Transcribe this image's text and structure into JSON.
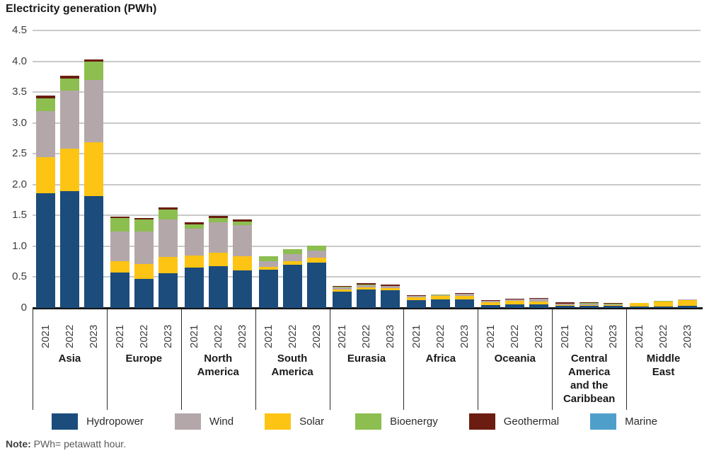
{
  "title": "Electricity generation (PWh)",
  "note": {
    "label": "Note:",
    "text": " PWh= petawatt hour."
  },
  "chart_data": {
    "type": "bar",
    "stacked": true,
    "title": "Electricity generation (PWh)",
    "ylabel": "Electricity generation (PWh)",
    "ylim": [
      0,
      4.5
    ],
    "grid": "horizontal",
    "legend_position": "bottom",
    "yticks": [
      "4.5",
      "4.0",
      "3.5",
      "3.0",
      "2.5",
      "2.0",
      "1.5",
      "1.0",
      "0.5",
      "0"
    ],
    "years": [
      "2021",
      "2022",
      "2023"
    ],
    "legend": [
      "Hydropower",
      "Wind",
      "Solar",
      "Bioenergy",
      "Geothermal",
      "Marine"
    ],
    "stack_order_bottom_to_top": [
      "Hydropower",
      "Solar",
      "Wind",
      "Bioenergy",
      "Geothermal",
      "Marine"
    ],
    "colors": {
      "Hydropower": "#1b4c7c",
      "Wind": "#b4a7aa",
      "Solar": "#fdc414",
      "Bioenergy": "#8cbe50",
      "Geothermal": "#6b1d11",
      "Marine": "#4f9fcb"
    },
    "regions": [
      {
        "name": "Asia",
        "bars": [
          {
            "year": "2021",
            "Hydropower": 1.86,
            "Solar": 0.58,
            "Wind": 0.75,
            "Bioenergy": 0.21,
            "Geothermal": 0.045,
            "Marine": 0
          },
          {
            "year": "2022",
            "Hydropower": 1.9,
            "Solar": 0.68,
            "Wind": 0.95,
            "Bioenergy": 0.19,
            "Geothermal": 0.045,
            "Marine": 0
          },
          {
            "year": "2023",
            "Hydropower": 1.81,
            "Solar": 0.88,
            "Wind": 1.01,
            "Bioenergy": 0.29,
            "Geothermal": 0.045,
            "Marine": 0
          }
        ]
      },
      {
        "name": "Europe",
        "bars": [
          {
            "year": "2021",
            "Hydropower": 0.57,
            "Solar": 0.19,
            "Wind": 0.48,
            "Bioenergy": 0.22,
            "Geothermal": 0.025,
            "Marine": 0.001
          },
          {
            "year": "2022",
            "Hydropower": 0.47,
            "Solar": 0.24,
            "Wind": 0.53,
            "Bioenergy": 0.19,
            "Geothermal": 0.025,
            "Marine": 0.001
          },
          {
            "year": "2023",
            "Hydropower": 0.56,
            "Solar": 0.27,
            "Wind": 0.61,
            "Bioenergy": 0.16,
            "Geothermal": 0.03,
            "Marine": 0.001
          }
        ]
      },
      {
        "name": "North America",
        "bars": [
          {
            "year": "2021",
            "Hydropower": 0.66,
            "Solar": 0.19,
            "Wind": 0.44,
            "Bioenergy": 0.07,
            "Geothermal": 0.03,
            "Marine": 0
          },
          {
            "year": "2022",
            "Hydropower": 0.68,
            "Solar": 0.22,
            "Wind": 0.49,
            "Bioenergy": 0.07,
            "Geothermal": 0.035,
            "Marine": 0
          },
          {
            "year": "2023",
            "Hydropower": 0.61,
            "Solar": 0.23,
            "Wind": 0.5,
            "Bioenergy": 0.06,
            "Geothermal": 0.035,
            "Marine": 0
          }
        ]
      },
      {
        "name": "South America",
        "bars": [
          {
            "year": "2021",
            "Hydropower": 0.62,
            "Solar": 0.05,
            "Wind": 0.09,
            "Bioenergy": 0.08,
            "Geothermal": 0,
            "Marine": 0
          },
          {
            "year": "2022",
            "Hydropower": 0.7,
            "Solar": 0.06,
            "Wind": 0.11,
            "Bioenergy": 0.08,
            "Geothermal": 0,
            "Marine": 0
          },
          {
            "year": "2023",
            "Hydropower": 0.73,
            "Solar": 0.08,
            "Wind": 0.12,
            "Bioenergy": 0.08,
            "Geothermal": 0,
            "Marine": 0
          }
        ]
      },
      {
        "name": "Eurasia",
        "bars": [
          {
            "year": "2021",
            "Hydropower": 0.26,
            "Solar": 0.035,
            "Wind": 0.04,
            "Bioenergy": 0.005,
            "Geothermal": 0.022,
            "Marine": 0
          },
          {
            "year": "2022",
            "Hydropower": 0.3,
            "Solar": 0.03,
            "Wind": 0.04,
            "Bioenergy": 0.005,
            "Geothermal": 0.025,
            "Marine": 0
          },
          {
            "year": "2023",
            "Hydropower": 0.285,
            "Solar": 0.035,
            "Wind": 0.035,
            "Bioenergy": 0.005,
            "Geothermal": 0.022,
            "Marine": 0
          }
        ]
      },
      {
        "name": "Africa",
        "bars": [
          {
            "year": "2021",
            "Hydropower": 0.13,
            "Solar": 0.045,
            "Wind": 0.018,
            "Bioenergy": 0.005,
            "Geothermal": 0.005,
            "Marine": 0
          },
          {
            "year": "2022",
            "Hydropower": 0.135,
            "Solar": 0.055,
            "Wind": 0.02,
            "Bioenergy": 0.005,
            "Geothermal": 0.005,
            "Marine": 0
          },
          {
            "year": "2023",
            "Hydropower": 0.14,
            "Solar": 0.06,
            "Wind": 0.025,
            "Bioenergy": 0.006,
            "Geothermal": 0.005,
            "Marine": 0
          }
        ]
      },
      {
        "name": "Oceania",
        "bars": [
          {
            "year": "2021",
            "Hydropower": 0.048,
            "Solar": 0.04,
            "Wind": 0.025,
            "Bioenergy": 0.007,
            "Geothermal": 0.002,
            "Marine": 0
          },
          {
            "year": "2022",
            "Hydropower": 0.058,
            "Solar": 0.052,
            "Wind": 0.028,
            "Bioenergy": 0.004,
            "Geothermal": 0.008,
            "Marine": 0
          },
          {
            "year": "2023",
            "Hydropower": 0.054,
            "Solar": 0.053,
            "Wind": 0.044,
            "Bioenergy": 0.004,
            "Geothermal": 0.002,
            "Marine": 0
          }
        ]
      },
      {
        "name": "Central America and the Caribbean",
        "bars": [
          {
            "year": "2021",
            "Hydropower": 0.038,
            "Solar": 0.011,
            "Wind": 0.023,
            "Bioenergy": 0.003,
            "Geothermal": 0.022,
            "Marine": 0
          },
          {
            "year": "2022",
            "Hydropower": 0.038,
            "Solar": 0.012,
            "Wind": 0.023,
            "Bioenergy": 0.003,
            "Geothermal": 0.022,
            "Marine": 0
          },
          {
            "year": "2023",
            "Hydropower": 0.036,
            "Solar": 0.012,
            "Wind": 0.015,
            "Bioenergy": 0.012,
            "Geothermal": 0.003,
            "Marine": 0
          }
        ]
      },
      {
        "name": "Middle East",
        "bars": [
          {
            "year": "2021",
            "Hydropower": 0.028,
            "Solar": 0.048,
            "Wind": 0.002,
            "Bioenergy": 0.002,
            "Geothermal": 0,
            "Marine": 0
          },
          {
            "year": "2022",
            "Hydropower": 0.028,
            "Solar": 0.078,
            "Wind": 0.003,
            "Bioenergy": 0.002,
            "Geothermal": 0,
            "Marine": 0
          },
          {
            "year": "2023",
            "Hydropower": 0.03,
            "Solar": 0.1,
            "Wind": 0.004,
            "Bioenergy": 0.002,
            "Geothermal": 0,
            "Marine": 0
          }
        ]
      }
    ]
  }
}
